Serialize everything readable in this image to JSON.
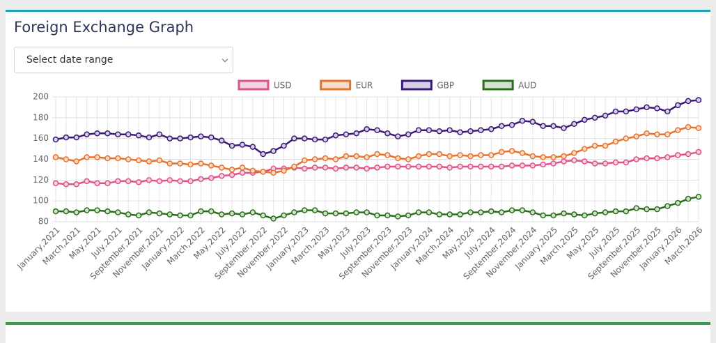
{
  "title": "Foreign Exchange Graph",
  "select_placeholder": "Select date range",
  "chart_data": {
    "type": "line",
    "categories": [
      "January,2021",
      null,
      "March,2021",
      null,
      "May,2021",
      null,
      "July,2021",
      null,
      "September,2021",
      null,
      "November,2021",
      null,
      "January,2022",
      null,
      "March,2022",
      null,
      "May,2022",
      null,
      "July,2022",
      null,
      "September,2022",
      null,
      "November,2022",
      null,
      "January,2023",
      null,
      "March,2023",
      null,
      "May,2023",
      null,
      "July,2023",
      null,
      "September,2023",
      null,
      "November,2023",
      null,
      "January,2024",
      null,
      "March,2024",
      null,
      "May,2024",
      null,
      "July,2024",
      null,
      "September,2024",
      null,
      "November,2024",
      null,
      "January,2025",
      null,
      "March,2025",
      null,
      "May,2025",
      null,
      "July,2025",
      null,
      "September,2025",
      null,
      "November,2025",
      null,
      "January,2026",
      null,
      "March,2026"
    ],
    "series": [
      {
        "name": "USD",
        "color": "#e0508a",
        "fill": "#f3d3e0",
        "values": [
          117,
          116,
          116,
          119,
          117,
          117,
          119,
          119,
          118,
          120,
          119,
          120,
          119,
          119,
          121,
          122,
          124,
          125,
          127,
          127,
          128,
          131,
          131,
          132,
          131,
          132,
          132,
          131,
          132,
          132,
          131,
          132,
          133,
          133,
          133,
          133,
          133,
          133,
          132,
          133,
          133,
          133,
          133,
          133,
          134,
          134,
          134,
          135,
          136,
          138,
          139,
          138,
          136,
          136,
          137,
          137,
          140,
          141,
          141,
          142,
          144,
          145,
          147
        ]
      },
      {
        "name": "EUR",
        "color": "#e8722a",
        "fill": "#f8dccb",
        "values": [
          142,
          140,
          138,
          142,
          142,
          141,
          141,
          140,
          139,
          138,
          139,
          136,
          136,
          135,
          136,
          134,
          132,
          130,
          132,
          129,
          128,
          127,
          129,
          133,
          139,
          140,
          141,
          140,
          143,
          143,
          142,
          145,
          144,
          141,
          140,
          143,
          145,
          145,
          143,
          144,
          143,
          144,
          144,
          147,
          148,
          146,
          143,
          142,
          142,
          143,
          146,
          150,
          153,
          153,
          157,
          160,
          162,
          165,
          164,
          164,
          168,
          171,
          170
        ]
      },
      {
        "name": "GBP",
        "color": "#3a1a78",
        "fill": "#d6d0e4",
        "values": [
          159,
          161,
          161,
          164,
          165,
          165,
          164,
          164,
          163,
          161,
          164,
          160,
          160,
          161,
          162,
          161,
          158,
          153,
          154,
          152,
          145,
          148,
          153,
          160,
          160,
          159,
          159,
          163,
          164,
          165,
          169,
          168,
          165,
          162,
          164,
          168,
          168,
          167,
          168,
          166,
          167,
          168,
          169,
          172,
          173,
          177,
          176,
          172,
          172,
          170,
          174,
          178,
          180,
          182,
          186,
          186,
          188,
          190,
          189,
          186,
          192,
          196,
          197
        ]
      },
      {
        "name": "AUD",
        "color": "#2a6e1a",
        "fill": "#d3e2cf",
        "values": [
          90,
          90,
          89,
          91,
          91,
          90,
          89,
          87,
          86,
          89,
          88,
          87,
          86,
          86,
          90,
          90,
          87,
          88,
          87,
          89,
          86,
          83,
          86,
          89,
          91,
          91,
          88,
          88,
          88,
          89,
          89,
          86,
          86,
          85,
          86,
          89,
          89,
          87,
          87,
          87,
          89,
          89,
          90,
          89,
          91,
          91,
          89,
          86,
          86,
          88,
          87,
          86,
          88,
          89,
          90,
          90,
          93,
          92,
          92,
          95,
          98,
          102,
          104
        ]
      }
    ],
    "ylim": [
      80,
      200
    ],
    "yticks": [
      80,
      100,
      120,
      140,
      160,
      180,
      200
    ],
    "grid": true,
    "legend": "top"
  }
}
